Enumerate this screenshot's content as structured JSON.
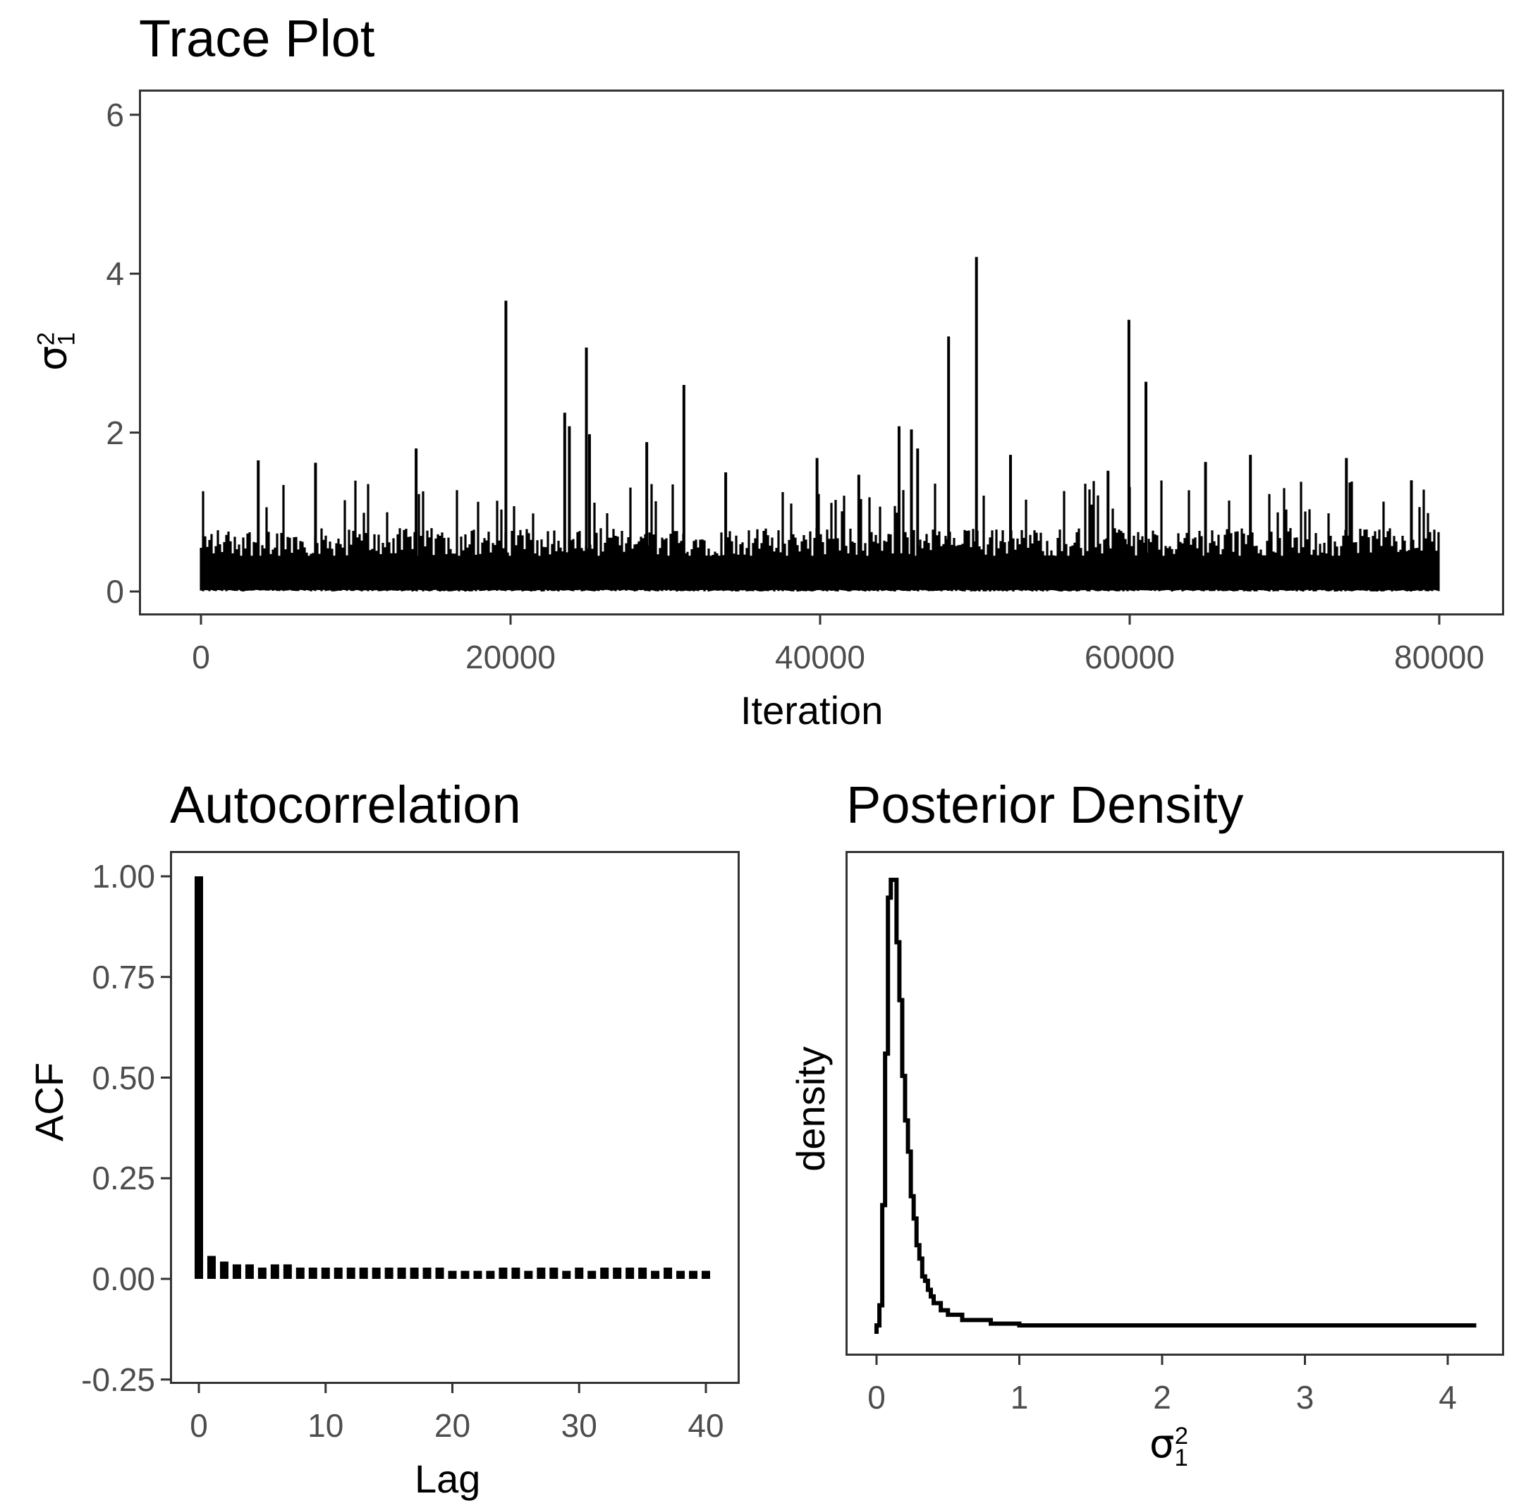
{
  "panels": {
    "trace": {
      "title": "Trace Plot",
      "xlabel": "Iteration",
      "ylabel_base": "σ",
      "ylabel_sub": "1",
      "ylabel_sup": "2",
      "xticks": [
        "0",
        "20000",
        "40000",
        "60000",
        "80000"
      ],
      "yticks": [
        "0",
        "2",
        "4",
        "6"
      ]
    },
    "acf": {
      "title": "Autocorrelation",
      "xlabel": "Lag",
      "ylabel": "ACF",
      "xticks": [
        "0",
        "10",
        "20",
        "30",
        "40"
      ],
      "yticks": [
        "-0.25",
        "0.00",
        "0.25",
        "0.50",
        "0.75",
        "1.00"
      ]
    },
    "density": {
      "title": "Posterior Density",
      "xlabel_base": "σ",
      "xlabel_sub": "1",
      "xlabel_sup": "2",
      "ylabel": "density",
      "xticks": [
        "0",
        "1",
        "2",
        "3",
        "4"
      ]
    }
  },
  "colors": {
    "line": "#000000",
    "frame": "#333333",
    "tick_label": "#4d4d4d",
    "background": "#ffffff"
  },
  "chart_data": [
    {
      "type": "line",
      "title": "Trace Plot",
      "xlabel": "Iteration",
      "ylabel": "σ1^2",
      "xlim": [
        -5000,
        85000
      ],
      "ylim": [
        -0.3,
        6.3
      ],
      "xticks": [
        0,
        20000,
        40000,
        60000,
        80000
      ],
      "yticks": [
        0,
        2,
        4,
        6
      ],
      "grid": false,
      "n_iterations": 80000,
      "typical_band": [
        0.02,
        0.8
      ],
      "spikes": [
        {
          "x": 3700,
          "y": 1.65
        },
        {
          "x": 7400,
          "y": 1.62
        },
        {
          "x": 13900,
          "y": 1.8
        },
        {
          "x": 19700,
          "y": 3.66
        },
        {
          "x": 23500,
          "y": 2.25
        },
        {
          "x": 23800,
          "y": 2.08
        },
        {
          "x": 24900,
          "y": 3.07
        },
        {
          "x": 25100,
          "y": 1.98
        },
        {
          "x": 28800,
          "y": 1.88
        },
        {
          "x": 31200,
          "y": 2.6
        },
        {
          "x": 33900,
          "y": 1.5
        },
        {
          "x": 39800,
          "y": 1.68
        },
        {
          "x": 42500,
          "y": 1.47
        },
        {
          "x": 45100,
          "y": 2.08
        },
        {
          "x": 45900,
          "y": 2.04
        },
        {
          "x": 46300,
          "y": 1.8
        },
        {
          "x": 48300,
          "y": 3.21
        },
        {
          "x": 50100,
          "y": 4.21
        },
        {
          "x": 52300,
          "y": 1.72
        },
        {
          "x": 58600,
          "y": 1.52
        },
        {
          "x": 59950,
          "y": 3.42
        },
        {
          "x": 61050,
          "y": 2.64
        },
        {
          "x": 64900,
          "y": 1.63
        },
        {
          "x": 67800,
          "y": 1.72
        },
        {
          "x": 74000,
          "y": 1.68
        },
        {
          "x": 78200,
          "y": 1.4
        }
      ]
    },
    {
      "type": "bar",
      "title": "Autocorrelation",
      "xlabel": "Lag",
      "ylabel": "ACF",
      "xlim": [
        -2,
        42
      ],
      "ylim": [
        -0.25,
        1.05
      ],
      "xticks": [
        0,
        10,
        20,
        30,
        40
      ],
      "yticks": [
        -0.25,
        0,
        0.25,
        0.5,
        0.75,
        1.0
      ],
      "grid": false,
      "categories": [
        0,
        1,
        2,
        3,
        4,
        5,
        6,
        7,
        8,
        9,
        10,
        11,
        12,
        13,
        14,
        15,
        16,
        17,
        18,
        19,
        20,
        21,
        22,
        23,
        24,
        25,
        26,
        27,
        28,
        29,
        30,
        31,
        32,
        33,
        34,
        35,
        36,
        37,
        38,
        39,
        40
      ],
      "values": [
        1.0,
        0.057,
        0.043,
        0.036,
        0.036,
        0.028,
        0.036,
        0.036,
        0.028,
        0.028,
        0.028,
        0.028,
        0.028,
        0.028,
        0.028,
        0.028,
        0.028,
        0.028,
        0.028,
        0.028,
        0.02,
        0.02,
        0.02,
        0.02,
        0.028,
        0.028,
        0.02,
        0.028,
        0.028,
        0.02,
        0.028,
        0.02,
        0.028,
        0.028,
        0.028,
        0.028,
        0.02,
        0.028,
        0.02,
        0.02,
        0.02
      ]
    },
    {
      "type": "line",
      "title": "Posterior Density",
      "xlabel": "σ1^2",
      "ylabel": "density",
      "xlim": [
        -0.2,
        4.4
      ],
      "xticks": [
        0,
        1,
        2,
        3,
        4
      ],
      "yticks": [],
      "grid": false,
      "note": "relative density (peak normalized to 1.0), y-axis unlabeled",
      "x": [
        0.0,
        0.02,
        0.04,
        0.06,
        0.08,
        0.1,
        0.12,
        0.14,
        0.16,
        0.18,
        0.2,
        0.22,
        0.24,
        0.26,
        0.28,
        0.3,
        0.32,
        0.34,
        0.36,
        0.38,
        0.4,
        0.45,
        0.5,
        0.6,
        0.8,
        1.0,
        2.0,
        3.0,
        4.2
      ],
      "values": [
        0.0,
        0.045,
        0.27,
        0.61,
        0.96,
        1.0,
        1.0,
        0.86,
        0.73,
        0.56,
        0.46,
        0.39,
        0.29,
        0.24,
        0.18,
        0.15,
        0.11,
        0.1,
        0.08,
        0.065,
        0.05,
        0.034,
        0.024,
        0.012,
        0.004,
        0.0,
        0.0,
        0.0,
        0.0
      ]
    }
  ]
}
